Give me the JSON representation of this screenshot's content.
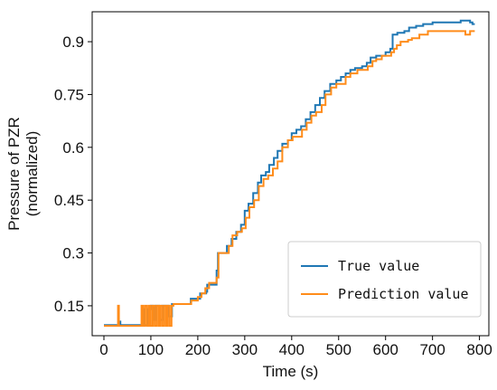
{
  "chart_data": {
    "type": "line",
    "xlabel": "Time (s)",
    "ylabel_line1": "Pressure of PZR",
    "ylabel_line2": "(normalized)",
    "xlim": [
      -25,
      820
    ],
    "ylim": [
      0.065,
      0.985
    ],
    "x_ticks": [
      0,
      100,
      200,
      300,
      400,
      500,
      600,
      700,
      800
    ],
    "x_tick_labels": [
      "0",
      "100",
      "200",
      "300",
      "400",
      "500",
      "600",
      "700",
      "800"
    ],
    "y_ticks": [
      0.15,
      0.3,
      0.45,
      0.6,
      0.75,
      0.9
    ],
    "y_tick_labels": [
      "0.15",
      "0.3",
      "0.45",
      "0.6",
      "0.75",
      "0.9"
    ],
    "grid": false,
    "legend_position": "lower-right",
    "series": [
      {
        "name": "True value",
        "color": "#1f77b4",
        "points": [
          [
            0,
            0.095
          ],
          [
            30,
            0.095
          ],
          [
            31,
            0.105
          ],
          [
            35,
            0.095
          ],
          [
            80,
            0.095
          ],
          [
            82,
            0.14
          ],
          [
            86,
            0.095
          ],
          [
            92,
            0.095
          ],
          [
            95,
            0.14
          ],
          [
            100,
            0.15
          ],
          [
            105,
            0.11
          ],
          [
            110,
            0.15
          ],
          [
            118,
            0.11
          ],
          [
            124,
            0.15
          ],
          [
            130,
            0.15
          ],
          [
            138,
            0.12
          ],
          [
            145,
            0.155
          ],
          [
            180,
            0.155
          ],
          [
            185,
            0.17
          ],
          [
            200,
            0.17
          ],
          [
            205,
            0.185
          ],
          [
            218,
            0.19
          ],
          [
            220,
            0.21
          ],
          [
            235,
            0.21
          ],
          [
            240,
            0.25
          ],
          [
            243,
            0.3
          ],
          [
            258,
            0.3
          ],
          [
            262,
            0.32
          ],
          [
            272,
            0.34
          ],
          [
            282,
            0.36
          ],
          [
            292,
            0.38
          ],
          [
            300,
            0.42
          ],
          [
            308,
            0.44
          ],
          [
            318,
            0.47
          ],
          [
            328,
            0.5
          ],
          [
            335,
            0.52
          ],
          [
            345,
            0.53
          ],
          [
            352,
            0.55
          ],
          [
            362,
            0.57
          ],
          [
            370,
            0.59
          ],
          [
            380,
            0.61
          ],
          [
            392,
            0.62
          ],
          [
            400,
            0.64
          ],
          [
            410,
            0.65
          ],
          [
            420,
            0.66
          ],
          [
            430,
            0.68
          ],
          [
            440,
            0.7
          ],
          [
            450,
            0.72
          ],
          [
            460,
            0.74
          ],
          [
            470,
            0.76
          ],
          [
            482,
            0.78
          ],
          [
            495,
            0.79
          ],
          [
            505,
            0.8
          ],
          [
            515,
            0.81
          ],
          [
            525,
            0.82
          ],
          [
            535,
            0.825
          ],
          [
            550,
            0.83
          ],
          [
            560,
            0.84
          ],
          [
            568,
            0.855
          ],
          [
            580,
            0.86
          ],
          [
            600,
            0.87
          ],
          [
            610,
            0.88
          ],
          [
            615,
            0.92
          ],
          [
            625,
            0.925
          ],
          [
            640,
            0.93
          ],
          [
            650,
            0.94
          ],
          [
            665,
            0.945
          ],
          [
            680,
            0.95
          ],
          [
            700,
            0.955
          ],
          [
            740,
            0.955
          ],
          [
            760,
            0.96
          ],
          [
            780,
            0.955
          ],
          [
            785,
            0.95
          ],
          [
            790,
            0.95
          ]
        ]
      },
      {
        "name": "Prediction value",
        "color": "#ff8c1a",
        "points": [
          [
            0,
            0.093
          ],
          [
            28,
            0.093
          ],
          [
            30,
            0.15
          ],
          [
            32,
            0.093
          ],
          [
            78,
            0.093
          ],
          [
            80,
            0.15
          ],
          [
            84,
            0.093
          ],
          [
            88,
            0.15
          ],
          [
            92,
            0.093
          ],
          [
            96,
            0.15
          ],
          [
            100,
            0.093
          ],
          [
            104,
            0.15
          ],
          [
            108,
            0.093
          ],
          [
            112,
            0.15
          ],
          [
            116,
            0.093
          ],
          [
            120,
            0.15
          ],
          [
            124,
            0.093
          ],
          [
            128,
            0.15
          ],
          [
            132,
            0.093
          ],
          [
            136,
            0.15
          ],
          [
            140,
            0.093
          ],
          [
            144,
            0.15
          ],
          [
            148,
            0.155
          ],
          [
            180,
            0.155
          ],
          [
            186,
            0.165
          ],
          [
            200,
            0.175
          ],
          [
            208,
            0.185
          ],
          [
            216,
            0.2
          ],
          [
            224,
            0.215
          ],
          [
            236,
            0.215
          ],
          [
            240,
            0.23
          ],
          [
            244,
            0.3
          ],
          [
            258,
            0.3
          ],
          [
            266,
            0.32
          ],
          [
            274,
            0.35
          ],
          [
            284,
            0.36
          ],
          [
            294,
            0.37
          ],
          [
            302,
            0.4
          ],
          [
            310,
            0.43
          ],
          [
            320,
            0.45
          ],
          [
            330,
            0.49
          ],
          [
            340,
            0.51
          ],
          [
            350,
            0.52
          ],
          [
            360,
            0.54
          ],
          [
            370,
            0.56
          ],
          [
            380,
            0.6
          ],
          [
            392,
            0.62
          ],
          [
            402,
            0.63
          ],
          [
            412,
            0.63
          ],
          [
            422,
            0.65
          ],
          [
            432,
            0.67
          ],
          [
            442,
            0.69
          ],
          [
            452,
            0.7
          ],
          [
            464,
            0.72
          ],
          [
            472,
            0.75
          ],
          [
            484,
            0.77
          ],
          [
            495,
            0.78
          ],
          [
            505,
            0.78
          ],
          [
            515,
            0.8
          ],
          [
            525,
            0.81
          ],
          [
            540,
            0.82
          ],
          [
            552,
            0.82
          ],
          [
            562,
            0.83
          ],
          [
            572,
            0.845
          ],
          [
            580,
            0.85
          ],
          [
            592,
            0.86
          ],
          [
            602,
            0.86
          ],
          [
            612,
            0.87
          ],
          [
            618,
            0.88
          ],
          [
            624,
            0.89
          ],
          [
            632,
            0.9
          ],
          [
            640,
            0.9
          ],
          [
            648,
            0.905
          ],
          [
            656,
            0.91
          ],
          [
            664,
            0.91
          ],
          [
            672,
            0.92
          ],
          [
            690,
            0.93
          ],
          [
            760,
            0.93
          ],
          [
            770,
            0.92
          ],
          [
            780,
            0.93
          ],
          [
            790,
            0.93
          ]
        ]
      }
    ]
  }
}
